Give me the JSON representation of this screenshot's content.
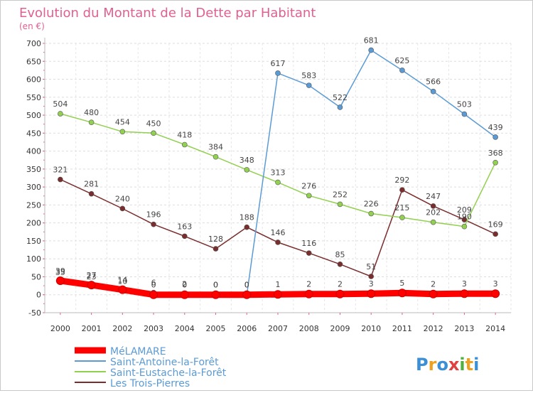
{
  "chart_data": {
    "type": "line",
    "title": "Evolution du Montant de la Dette par Habitant",
    "subtitle": "(en €)",
    "xlabel": "",
    "ylabel": "",
    "x": [
      "2000",
      "2001",
      "2002",
      "2003",
      "2004",
      "2005",
      "2006",
      "2007",
      "2008",
      "2009",
      "2010",
      "2011",
      "2012",
      "2013",
      "2014"
    ],
    "ylim": [
      -50,
      700
    ],
    "yticks": [
      -50,
      0,
      50,
      100,
      150,
      200,
      250,
      300,
      350,
      400,
      450,
      500,
      550,
      600,
      650,
      700
    ],
    "grid": true,
    "legend_position": "bottom-left",
    "series": [
      {
        "name": "MéLAMARE",
        "color": "#ff0000",
        "values": [
          39,
          27,
          14,
          0,
          0,
          0,
          0,
          1,
          2,
          2,
          3,
          5,
          2,
          3,
          3
        ],
        "labels": [
          "39",
          "27",
          "14",
          "0",
          "0",
          "0",
          "0",
          "1",
          "2",
          "2",
          "3",
          "5",
          "2",
          "3",
          "3"
        ]
      },
      {
        "name": "Saint-Antoine-la-Forêt",
        "color": "#5b9bd5",
        "values": [
          35,
          23,
          10,
          6,
          2,
          0,
          0,
          617,
          583,
          522,
          681,
          625,
          566,
          503,
          439
        ],
        "labels": [
          "35",
          "23",
          "10",
          "6",
          "2",
          "0",
          "0",
          "617",
          "583",
          "522",
          "681",
          "625",
          "566",
          "503",
          "439"
        ]
      },
      {
        "name": "Saint-Eustache-la-Forêt",
        "color": "#92d050",
        "values": [
          504,
          480,
          454,
          450,
          418,
          384,
          348,
          313,
          276,
          252,
          226,
          215,
          202,
          190,
          368
        ],
        "labels": [
          "504",
          "480",
          "454",
          "450",
          "418",
          "384",
          "348",
          "313",
          "276",
          "252",
          "226",
          "215",
          "202",
          "190",
          "368"
        ]
      },
      {
        "name": "Les Trois-Pierres",
        "color": "#7b2c2c",
        "values": [
          321,
          281,
          240,
          196,
          163,
          128,
          188,
          146,
          116,
          85,
          51,
          292,
          247,
          209,
          169
        ],
        "labels": [
          "321",
          "281",
          "240",
          "196",
          "163",
          "128",
          "188",
          "146",
          "116",
          "85",
          "51",
          "292",
          "247",
          "209",
          "169"
        ]
      }
    ]
  },
  "logo": {
    "text": "Proxiti"
  }
}
